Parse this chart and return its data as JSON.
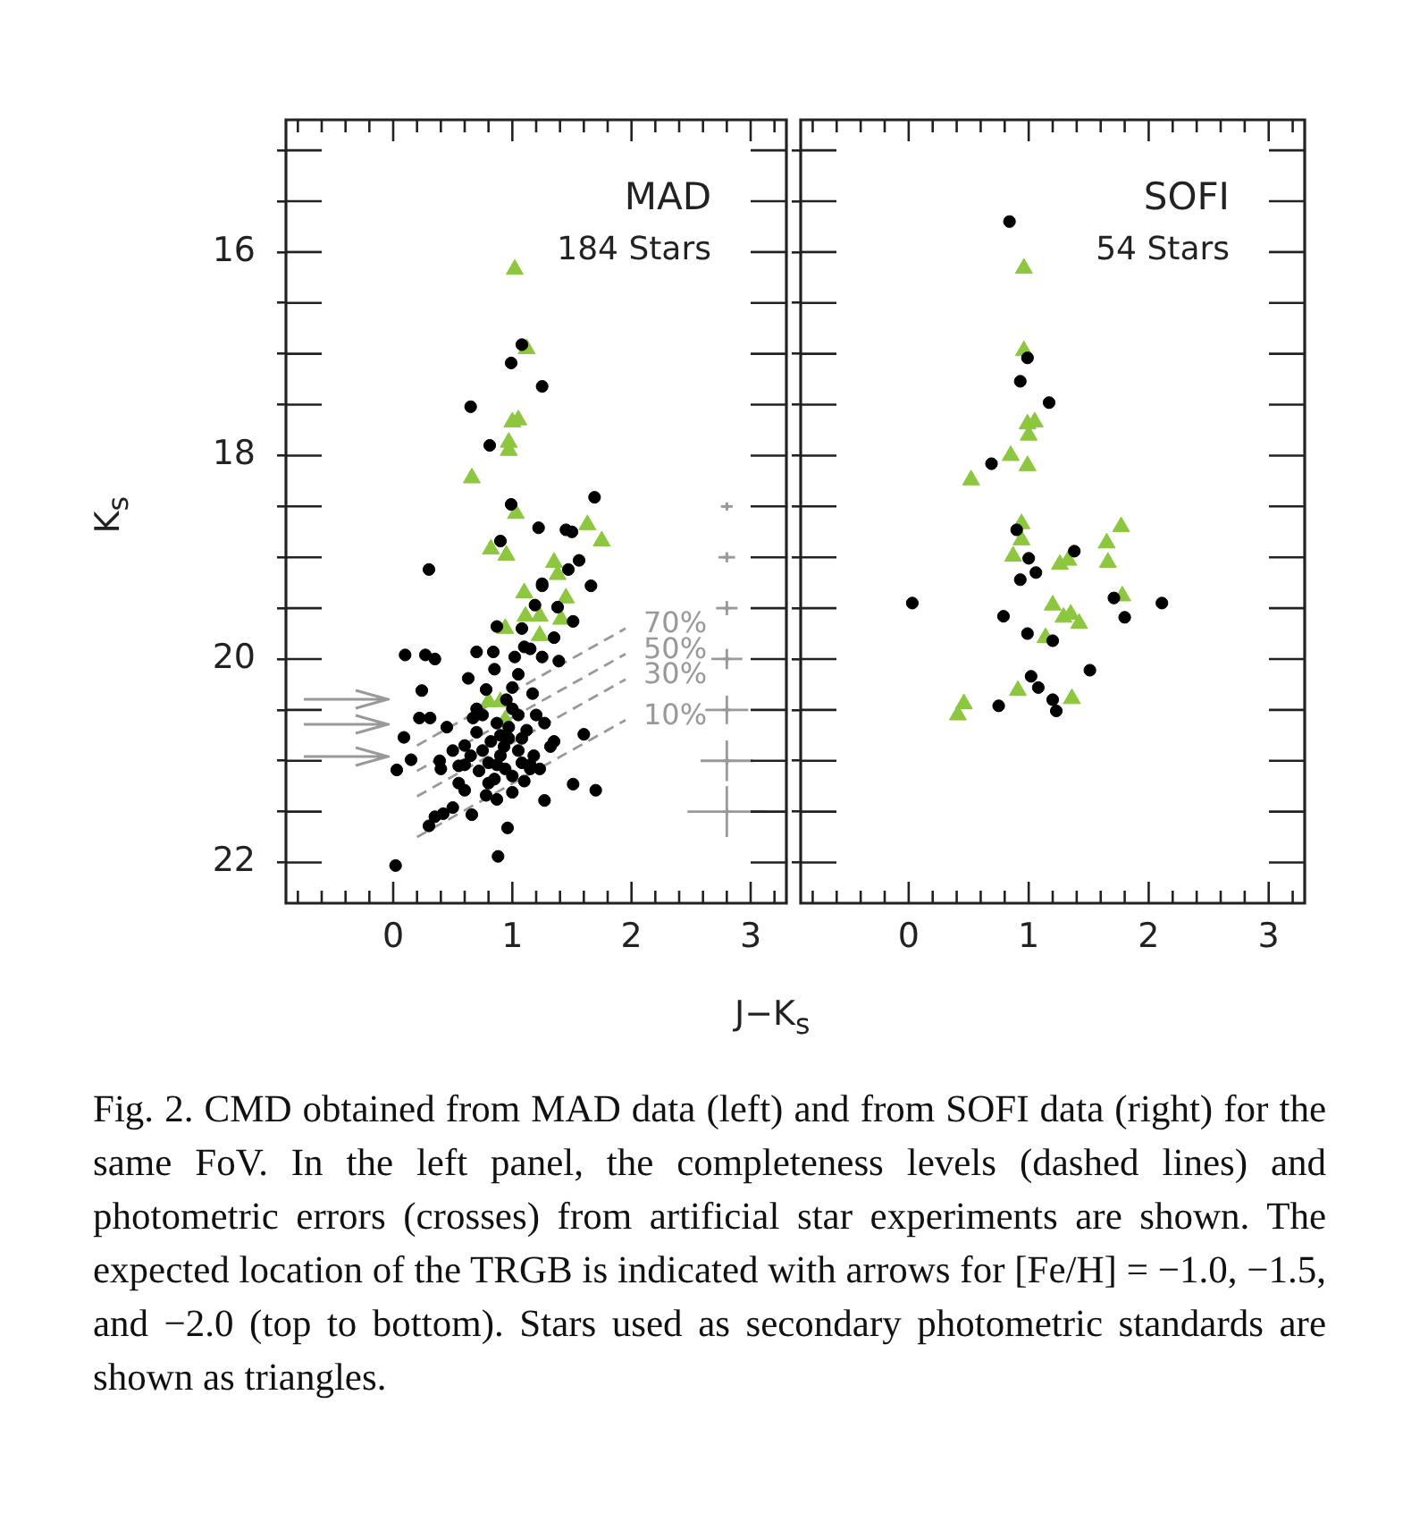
{
  "chart_data": [
    {
      "type": "scatter",
      "title": "MAD",
      "subtitle": "184 Stars",
      "xlabel": "J−K$_{s}$",
      "ylabel": "K$_{s}$",
      "grid": false,
      "annotations": [
        "Fig. 2. CMD obtained from MAD data (left) and from SOFI data (right) for the same FoV. In the left panel, the completeness levels (dashed lines) and photometric errors (crosses) from artificial star experiments are shown. The expected location of the TRGB is indicated with arrows for [Fe/H] = −1.0, −1.5, and −2.0 (top to bottom). Stars used as secondary photometric standards are shown as triangles."
      ],
      "xlim": [
        -0.9,
        3.3
      ],
      "ylim": [
        22.4,
        14.7
      ],
      "xticks": [
        {
          "value": -0.8,
          "label": null
        },
        {
          "value": -0.6,
          "label": null
        },
        {
          "value": -0.4,
          "label": null
        },
        {
          "value": -0.2,
          "label": null
        },
        0,
        {
          "value": 0.2,
          "label": null
        },
        {
          "value": 0.4,
          "label": null
        },
        {
          "value": 0.6,
          "label": null
        },
        {
          "value": 0.8,
          "label": null
        },
        1,
        {
          "value": 1.2,
          "label": null
        },
        {
          "value": 1.4,
          "label": null
        },
        {
          "value": 1.6,
          "label": null
        },
        {
          "value": 1.8,
          "label": null
        },
        2,
        {
          "value": 2.2,
          "label": null
        },
        {
          "value": 2.4,
          "label": null
        },
        {
          "value": 2.6,
          "label": null
        },
        {
          "value": 2.8,
          "label": null
        },
        3,
        {
          "value": 3.2,
          "label": null
        }
      ],
      "yticks": [
        {
          "value": 15,
          "label": null
        },
        {
          "value": 15.5,
          "label": null
        },
        16,
        {
          "value": 16.5,
          "label": null
        },
        {
          "value": 17,
          "label": null
        },
        {
          "value": 17.5,
          "label": null
        },
        18,
        {
          "value": 18.5,
          "label": null
        },
        {
          "value": 19,
          "label": null
        },
        {
          "value": 19.5,
          "label": null
        },
        20,
        {
          "value": 20.5,
          "label": null
        },
        {
          "value": 21,
          "label": null
        },
        {
          "value": 21.5,
          "label": null
        },
        22
      ],
      "ref_lines": [
        {
          "axis": "y",
          "value": 20.4,
          "color": "#999999"
        },
        {
          "axis": "y",
          "value": 20.65,
          "color": "#999999"
        },
        {
          "axis": "y",
          "value": 20.95,
          "color": "#999999"
        }
      ],
      "series": [
        {
          "marker": "circle",
          "color": "#000000",
          "x": [
            1.08,
            0.99,
            1.25,
            0.65,
            0.81,
            0.99,
            1.69,
            1.22,
            1.45,
            1.5,
            0.9,
            0.3,
            1.56,
            1.47,
            1.25,
            1.66,
            1.38,
            1.19,
            1.51,
            0.87,
            1.08,
            1.35,
            1.1,
            0.7,
            0.84,
            1.25,
            1.15,
            1.25,
            1.39,
            1.17,
            1.2,
            1.27,
            1.6,
            1.35,
            1.32,
            1.15,
            1.23,
            1.51,
            1.7,
            1.27,
            1.08,
            0.1,
            0.27,
            0.35,
            1.02,
            0.63,
            0.85,
            1.0,
            0.24,
            0.67,
            0.22,
            0.31,
            0.45,
            0.09,
            0.15,
            0.03,
            0.39,
            0.4,
            0.6,
            0.75,
            0.8,
            0.87,
            0.94,
            0.7,
            0.82,
            0.93,
            1.05,
            1.08,
            1.15,
            0.55,
            0.6,
            0.78,
            0.87,
            1.0,
            0.66,
            0.42,
            0.35,
            0.5,
            0.3,
            0.96,
            0.02,
            0.88,
            0.75,
            0.87,
            0.97,
            0.7,
            0.5,
            0.6,
            1.0,
            0.97,
            0.9,
            1.0,
            0.85,
            0.72,
            1.12,
            0.95,
            0.78,
            1.05,
            0.65,
            0.8,
            1.1,
            0.55,
            0.9,
            1.05,
            1.18
          ],
          "values": [
            16.91,
            17.09,
            17.32,
            17.52,
            17.9,
            18.48,
            18.41,
            18.71,
            18.73,
            18.75,
            18.84,
            19.12,
            19.03,
            19.12,
            19.28,
            19.28,
            19.49,
            19.47,
            19.63,
            19.68,
            19.7,
            19.79,
            19.88,
            19.93,
            19.93,
            19.26,
            19.9,
            19.98,
            20.02,
            20.34,
            20.55,
            20.63,
            20.74,
            20.81,
            20.86,
            21.04,
            21.08,
            21.23,
            21.29,
            21.39,
            20.78,
            19.96,
            19.96,
            20.0,
            19.98,
            20.19,
            20.1,
            20.28,
            20.31,
            20.58,
            20.58,
            20.58,
            20.67,
            20.77,
            20.99,
            21.09,
            21.0,
            21.08,
            21.04,
            20.9,
            21.02,
            21.04,
            21.08,
            20.72,
            20.81,
            20.86,
            20.9,
            21.02,
            21.08,
            21.22,
            21.29,
            21.34,
            21.38,
            21.31,
            21.53,
            21.52,
            21.55,
            21.46,
            21.64,
            21.66,
            22.03,
            21.94,
            20.55,
            20.63,
            20.67,
            20.49,
            20.9,
            20.85,
            20.49,
            20.78,
            20.95,
            21.15,
            21.18,
            21.1,
            20.7,
            20.4,
            20.3,
            20.15,
            20.95,
            21.22,
            21.2,
            21.05,
            20.75,
            20.55,
            20.95
          ]
        },
        {
          "type": "scatter",
          "marker": "triangle",
          "color": "#8dc63f",
          "x": [
            1.02,
            1.12,
            1.05,
            1.0,
            0.97,
            0.97,
            0.66,
            1.03,
            1.63,
            1.75,
            0.82,
            0.95,
            1.35,
            1.38,
            1.1,
            1.45,
            1.11,
            1.23,
            1.41,
            0.94,
            1.23,
            0.8,
            0.9,
            0.94
          ],
          "values": [
            16.17,
            16.95,
            17.65,
            17.67,
            17.87,
            17.95,
            18.22,
            18.57,
            18.68,
            18.84,
            18.92,
            18.98,
            19.05,
            19.17,
            19.35,
            19.4,
            19.58,
            19.58,
            19.61,
            19.7,
            19.77,
            20.42,
            20.42,
            20.6
          ]
        },
        {
          "type": "line",
          "name": "70%",
          "line_style": "dashed",
          "color": "#999999",
          "x": [
            0.2,
            1.95
          ],
          "values": [
            20.85,
            19.7
          ]
        },
        {
          "type": "line",
          "name": "50%",
          "line_style": "dashed",
          "color": "#999999",
          "x": [
            0.2,
            1.95
          ],
          "values": [
            21.1,
            19.95
          ]
        },
        {
          "type": "line",
          "name": "30%",
          "line_style": "dashed",
          "color": "#999999",
          "x": [
            0.2,
            1.95
          ],
          "values": [
            21.35,
            20.2
          ]
        },
        {
          "type": "line",
          "name": "10%",
          "line_style": "dashed",
          "color": "#999999",
          "x": [
            0.2,
            1.95
          ],
          "values": [
            21.75,
            20.6
          ]
        },
        {
          "marker": "cross",
          "color": "#999999",
          "x": [
            2.8,
            2.8,
            2.8,
            2.8,
            2.8,
            2.8,
            2.8
          ],
          "values": [
            18.5,
            19,
            19.5,
            20,
            20.5,
            21,
            21.5
          ],
          "errors": [
            0.04,
            0.05,
            0.07,
            0.1,
            0.14,
            0.2,
            0.25
          ],
          "xerrors": [
            0.05,
            0.07,
            0.09,
            0.13,
            0.18,
            0.22,
            0.33
          ]
        }
      ]
    },
    {
      "type": "scatter",
      "title": "SOFI",
      "subtitle": "54 Stars",
      "grid": false,
      "tick_labels": "x",
      "xlim": [
        -0.9,
        3.3
      ],
      "ylim": [
        22.4,
        14.7
      ],
      "xticks": [
        {
          "value": -0.8,
          "label": null
        },
        {
          "value": -0.6,
          "label": null
        },
        {
          "value": -0.4,
          "label": null
        },
        {
          "value": -0.2,
          "label": null
        },
        0,
        {
          "value": 0.2,
          "label": null
        },
        {
          "value": 0.4,
          "label": null
        },
        {
          "value": 0.6,
          "label": null
        },
        {
          "value": 0.8,
          "label": null
        },
        1,
        {
          "value": 1.2,
          "label": null
        },
        {
          "value": 1.4,
          "label": null
        },
        {
          "value": 1.6,
          "label": null
        },
        {
          "value": 1.8,
          "label": null
        },
        2,
        {
          "value": 2.2,
          "label": null
        },
        {
          "value": 2.4,
          "label": null
        },
        {
          "value": 2.6,
          "label": null
        },
        {
          "value": 2.8,
          "label": null
        },
        3,
        {
          "value": 3.2,
          "label": null
        }
      ],
      "yticks": [
        {
          "value": 15,
          "label": null
        },
        {
          "value": 15.5,
          "label": null
        },
        16,
        {
          "value": 16.5,
          "label": null
        },
        {
          "value": 17,
          "label": null
        },
        {
          "value": 17.5,
          "label": null
        },
        18,
        {
          "value": 18.5,
          "label": null
        },
        {
          "value": 19,
          "label": null
        },
        {
          "value": 19.5,
          "label": null
        },
        20,
        {
          "value": 20.5,
          "label": null
        },
        {
          "value": 21,
          "label": null
        },
        {
          "value": 21.5,
          "label": null
        },
        22
      ],
      "series": [
        {
          "marker": "circle",
          "color": "#000000",
          "x": [
            0.84,
            0.99,
            0.93,
            1.17,
            0.69,
            0.9,
            1.0,
            1.38,
            1.06,
            0.93,
            0.03,
            1.71,
            1.8,
            0.79,
            0.99,
            1.2,
            1.51,
            1.02,
            1.08,
            0.75,
            1.2,
            1.23,
            2.11
          ],
          "values": [
            15.7,
            17.04,
            17.27,
            17.48,
            18.08,
            18.73,
            19.01,
            18.94,
            19.15,
            19.22,
            19.45,
            19.4,
            19.59,
            19.58,
            19.75,
            19.82,
            20.11,
            20.17,
            20.28,
            20.46,
            20.4,
            20.51,
            19.45
          ]
        },
        {
          "type": "scatter",
          "marker": "triangle",
          "color": "#8dc63f",
          "x": [
            0.96,
            0.96,
            0.99,
            1.05,
            1.0,
            0.85,
            0.99,
            0.52,
            0.94,
            0.94,
            0.87,
            1.77,
            1.65,
            1.66,
            1.26,
            1.33,
            1.78,
            1.2,
            1.29,
            1.35,
            1.42,
            1.14,
            0.91,
            1.36,
            0.46,
            0.41
          ],
          "values": [
            16.16,
            16.97,
            17.69,
            17.67,
            17.8,
            18.0,
            18.1,
            18.24,
            18.67,
            18.83,
            18.99,
            18.7,
            18.86,
            19.05,
            19.07,
            19.03,
            19.38,
            19.47,
            19.59,
            19.56,
            19.65,
            19.79,
            20.31,
            20.39,
            20.44,
            20.55
          ]
        }
      ]
    }
  ]
}
